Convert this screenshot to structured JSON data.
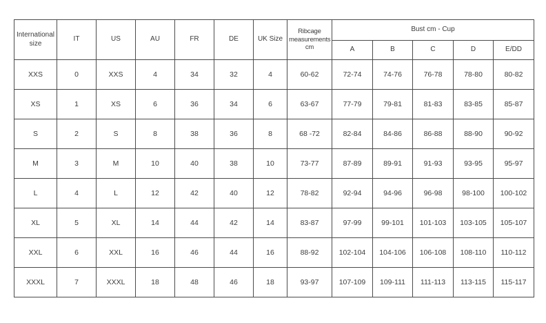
{
  "colors": {
    "background": "#ffffff",
    "border": "#4a4a4a",
    "text": "#3b3b3b"
  },
  "chart_data": {
    "type": "table",
    "main_columns": [
      "International size",
      "IT",
      "US",
      "AU",
      "FR",
      "DE",
      "UK Size",
      "Ribcage measurements cm"
    ],
    "bust_group": {
      "label": "Bust cm - Cup",
      "cup_columns": [
        "A",
        "B",
        "C",
        "D",
        "E/DD"
      ]
    },
    "rows": [
      [
        "XXS",
        "0",
        "XXS",
        "4",
        "34",
        "32",
        "4",
        "60-62",
        "72-74",
        "74-76",
        "76-78",
        "78-80",
        "80-82"
      ],
      [
        "XS",
        "1",
        "XS",
        "6",
        "36",
        "34",
        "6",
        "63-67",
        "77-79",
        "79-81",
        "81-83",
        "83-85",
        "85-87"
      ],
      [
        "S",
        "2",
        "S",
        "8",
        "38",
        "36",
        "8",
        "68 -72",
        "82-84",
        "84-86",
        "86-88",
        "88-90",
        "90-92"
      ],
      [
        "M",
        "3",
        "M",
        "10",
        "40",
        "38",
        "10",
        "73-77",
        "87-89",
        "89-91",
        "91-93",
        "93-95",
        "95-97"
      ],
      [
        "L",
        "4",
        "L",
        "12",
        "42",
        "40",
        "12",
        "78-82",
        "92-94",
        "94-96",
        "96-98",
        "98-100",
        "100-102"
      ],
      [
        "XL",
        "5",
        "XL",
        "14",
        "44",
        "42",
        "14",
        "83-87",
        "97-99",
        "99-101",
        "101-103",
        "103-105",
        "105-107"
      ],
      [
        "XXL",
        "6",
        "XXL",
        "16",
        "46",
        "44",
        "16",
        "88-92",
        "102-104",
        "104-106",
        "106-108",
        "108-110",
        "110-112"
      ],
      [
        "XXXL",
        "7",
        "XXXL",
        "18",
        "48",
        "46",
        "18",
        "93-97",
        "107-109",
        "109-111",
        "111-113",
        "113-115",
        "115-117"
      ]
    ]
  }
}
